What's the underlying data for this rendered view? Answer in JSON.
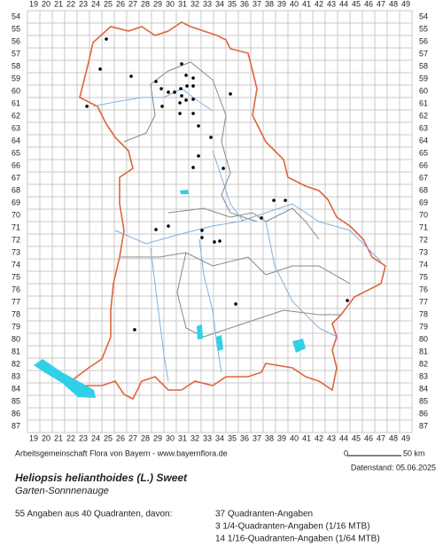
{
  "columns": [
    19,
    20,
    21,
    22,
    23,
    24,
    25,
    26,
    27,
    28,
    29,
    30,
    31,
    32,
    33,
    34,
    35,
    36,
    37,
    38,
    39,
    40,
    41,
    42,
    43,
    44,
    45,
    46,
    47,
    48,
    49
  ],
  "rows": [
    54,
    55,
    56,
    57,
    58,
    59,
    60,
    61,
    62,
    63,
    64,
    65,
    66,
    67,
    68,
    69,
    70,
    71,
    72,
    73,
    74,
    75,
    76,
    77,
    78,
    79,
    80,
    81,
    82,
    83,
    84,
    85,
    86,
    87
  ],
  "points": {
    "x": [
      24.86,
      24.36,
      26.86,
      28.86,
      30.93,
      31.86,
      31.29,
      29.29,
      29.86,
      30.36,
      30.86,
      31.36,
      31.86,
      30.93,
      31.29,
      31.86,
      30.79,
      29.36,
      23.29,
      34.86,
      30.79,
      31.86,
      32.29,
      33.29,
      32.29,
      31.86,
      34.29,
      38.36,
      39.29,
      37.36,
      28.86,
      29.86,
      32.57,
      32.57,
      33.57,
      34.0,
      35.29,
      27.14,
      44.29
    ],
    "y": [
      55.79,
      58.21,
      58.79,
      59.21,
      57.79,
      58.93,
      58.71,
      59.79,
      60.07,
      60.07,
      59.79,
      59.57,
      59.57,
      60.36,
      60.71,
      60.64,
      60.93,
      61.21,
      61.21,
      60.21,
      61.79,
      61.79,
      62.79,
      63.71,
      65.21,
      66.14,
      66.21,
      68.79,
      68.79,
      70.21,
      71.14,
      70.86,
      71.21,
      71.79,
      72.14,
      72.07,
      77.14,
      79.21,
      76.86
    ]
  },
  "footer": {
    "credit": "Arbeitsgemeinschaft Flora von Bayern - www.bayernflora.de",
    "scale_start": "0",
    "scale_end": "50 km",
    "date": "Datenstand: 05.06.2025"
  },
  "species": {
    "name": "Heliopsis helianthoides (L.) Sweet",
    "common": "Garten-Sonnnenauge"
  },
  "summary": {
    "total": "55 Angaben aus 40 Quadranten, davon:",
    "lines": [
      "37 Quadranten-Angaben",
      "3 1/4-Quadranten-Angaben (1/16 MTB)",
      "14 1/16-Quadranten-Angaben (1/64 MTB)"
    ]
  }
}
